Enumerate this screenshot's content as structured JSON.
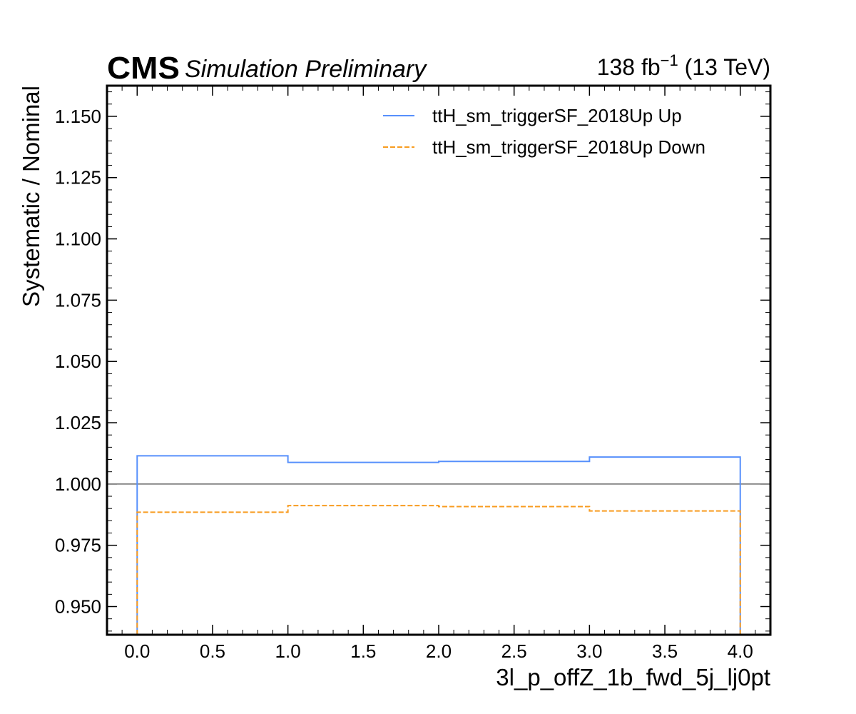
{
  "header": {
    "experiment": "CMS",
    "status": "Simulation Preliminary",
    "lumi_value": "138 fb",
    "lumi_exp": "−1",
    "energy": " (13 TeV)"
  },
  "chart_data": {
    "type": "line",
    "drawstyle": "steps",
    "xlabel": "3l_p_offZ_1b_fwd_5j_lj0pt",
    "ylabel": "Systematic / Nominal",
    "xlim": [
      -0.2,
      4.2
    ],
    "ylim": [
      0.9385,
      1.1625
    ],
    "xticks": [
      0.0,
      0.5,
      1.0,
      1.5,
      2.0,
      2.5,
      3.0,
      3.5,
      4.0
    ],
    "xtick_labels": [
      "0.0",
      "0.5",
      "1.0",
      "1.5",
      "2.0",
      "2.5",
      "3.0",
      "3.5",
      "4.0"
    ],
    "yticks": [
      0.95,
      0.975,
      1.0,
      1.025,
      1.05,
      1.075,
      1.1,
      1.125,
      1.15
    ],
    "ytick_labels": [
      "0.950",
      "0.975",
      "1.000",
      "1.025",
      "1.050",
      "1.075",
      "1.100",
      "1.125",
      "1.150"
    ],
    "bin_edges": [
      0,
      1,
      2,
      3,
      4
    ],
    "reference_line": {
      "y": 1.0,
      "color": "#808080"
    },
    "series": [
      {
        "name": "ttH_sm_triggerSF_2018Up Up",
        "color": "#5790fc",
        "linestyle": "solid",
        "values": [
          1.0115,
          1.0088,
          1.0092,
          1.011
        ]
      },
      {
        "name": "ttH_sm_triggerSF_2018Up Down",
        "color": "#f89c20",
        "linestyle": "dashed",
        "values": [
          0.9885,
          0.9912,
          0.9908,
          0.989
        ]
      }
    ],
    "legend_position": "upper right",
    "grid": false
  }
}
